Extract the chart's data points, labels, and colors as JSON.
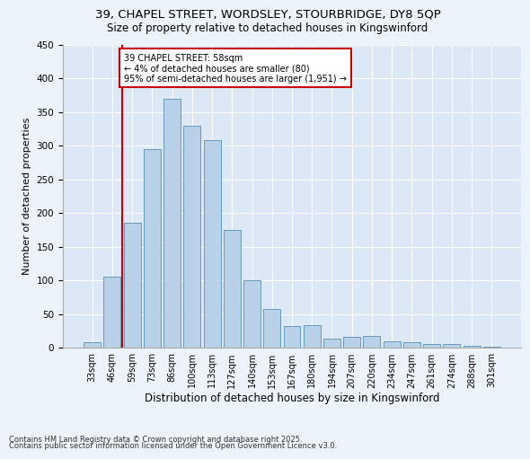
{
  "title1": "39, CHAPEL STREET, WORDSLEY, STOURBRIDGE, DY8 5QP",
  "title2": "Size of property relative to detached houses in Kingswinford",
  "xlabel": "Distribution of detached houses by size in Kingswinford",
  "ylabel": "Number of detached properties",
  "categories": [
    "33sqm",
    "46sqm",
    "59sqm",
    "73sqm",
    "86sqm",
    "100sqm",
    "113sqm",
    "127sqm",
    "140sqm",
    "153sqm",
    "167sqm",
    "180sqm",
    "194sqm",
    "207sqm",
    "220sqm",
    "234sqm",
    "247sqm",
    "261sqm",
    "274sqm",
    "288sqm",
    "301sqm"
  ],
  "values": [
    8,
    105,
    185,
    295,
    370,
    330,
    308,
    175,
    100,
    58,
    32,
    33,
    14,
    16,
    18,
    10,
    8,
    5,
    5,
    3,
    2
  ],
  "bar_color": "#b8d0e8",
  "bar_edge_color": "#6699bb",
  "property_line_color": "#cc0000",
  "annotation_title": "39 CHAPEL STREET: 58sqm",
  "annotation_line1": "← 4% of detached houses are smaller (80)",
  "annotation_line2": "95% of semi-detached houses are larger (1,951) →",
  "annotation_box_color": "#ffffff",
  "annotation_box_edge": "#cc0000",
  "ylim": [
    0,
    450
  ],
  "yticks": [
    0,
    50,
    100,
    150,
    200,
    250,
    300,
    350,
    400,
    450
  ],
  "bg_color": "#dce8f5",
  "fig_bg_color": "#edf3fa",
  "footer1": "Contains HM Land Registry data © Crown copyright and database right 2025.",
  "footer2": "Contains public sector information licensed under the Open Government Licence v3.0."
}
